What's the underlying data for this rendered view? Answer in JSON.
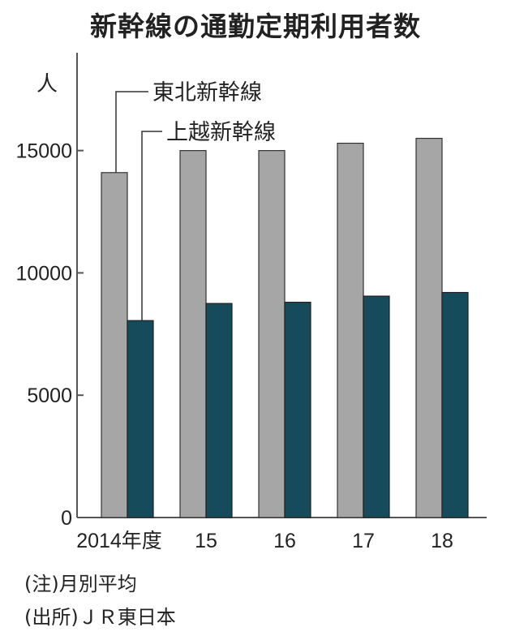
{
  "title": "新幹線の通勤定期利用者数",
  "notes": {
    "note1": "(注)月別平均",
    "note2": "(出所)ＪＲ東日本"
  },
  "colors": {
    "series_1": "#a6a6a6",
    "series_2": "#164b5c",
    "axis": "#555555"
  },
  "chart_data": {
    "type": "bar",
    "title": "新幹線の通勤定期利用者数",
    "ylabel": "人",
    "xlabel": "",
    "categories": [
      "2014年度",
      "15",
      "16",
      "17",
      "18"
    ],
    "ylim": [
      0,
      19000
    ],
    "yticks": [
      0,
      5000,
      10000,
      15000
    ],
    "grid": false,
    "series": [
      {
        "name": "東北新幹線",
        "values": [
          14100,
          15000,
          15000,
          15300,
          15500
        ]
      },
      {
        "name": "上越新幹線",
        "values": [
          8050,
          8750,
          8800,
          9050,
          9200
        ]
      }
    ],
    "legend_placement": "callouts on first category bars"
  }
}
